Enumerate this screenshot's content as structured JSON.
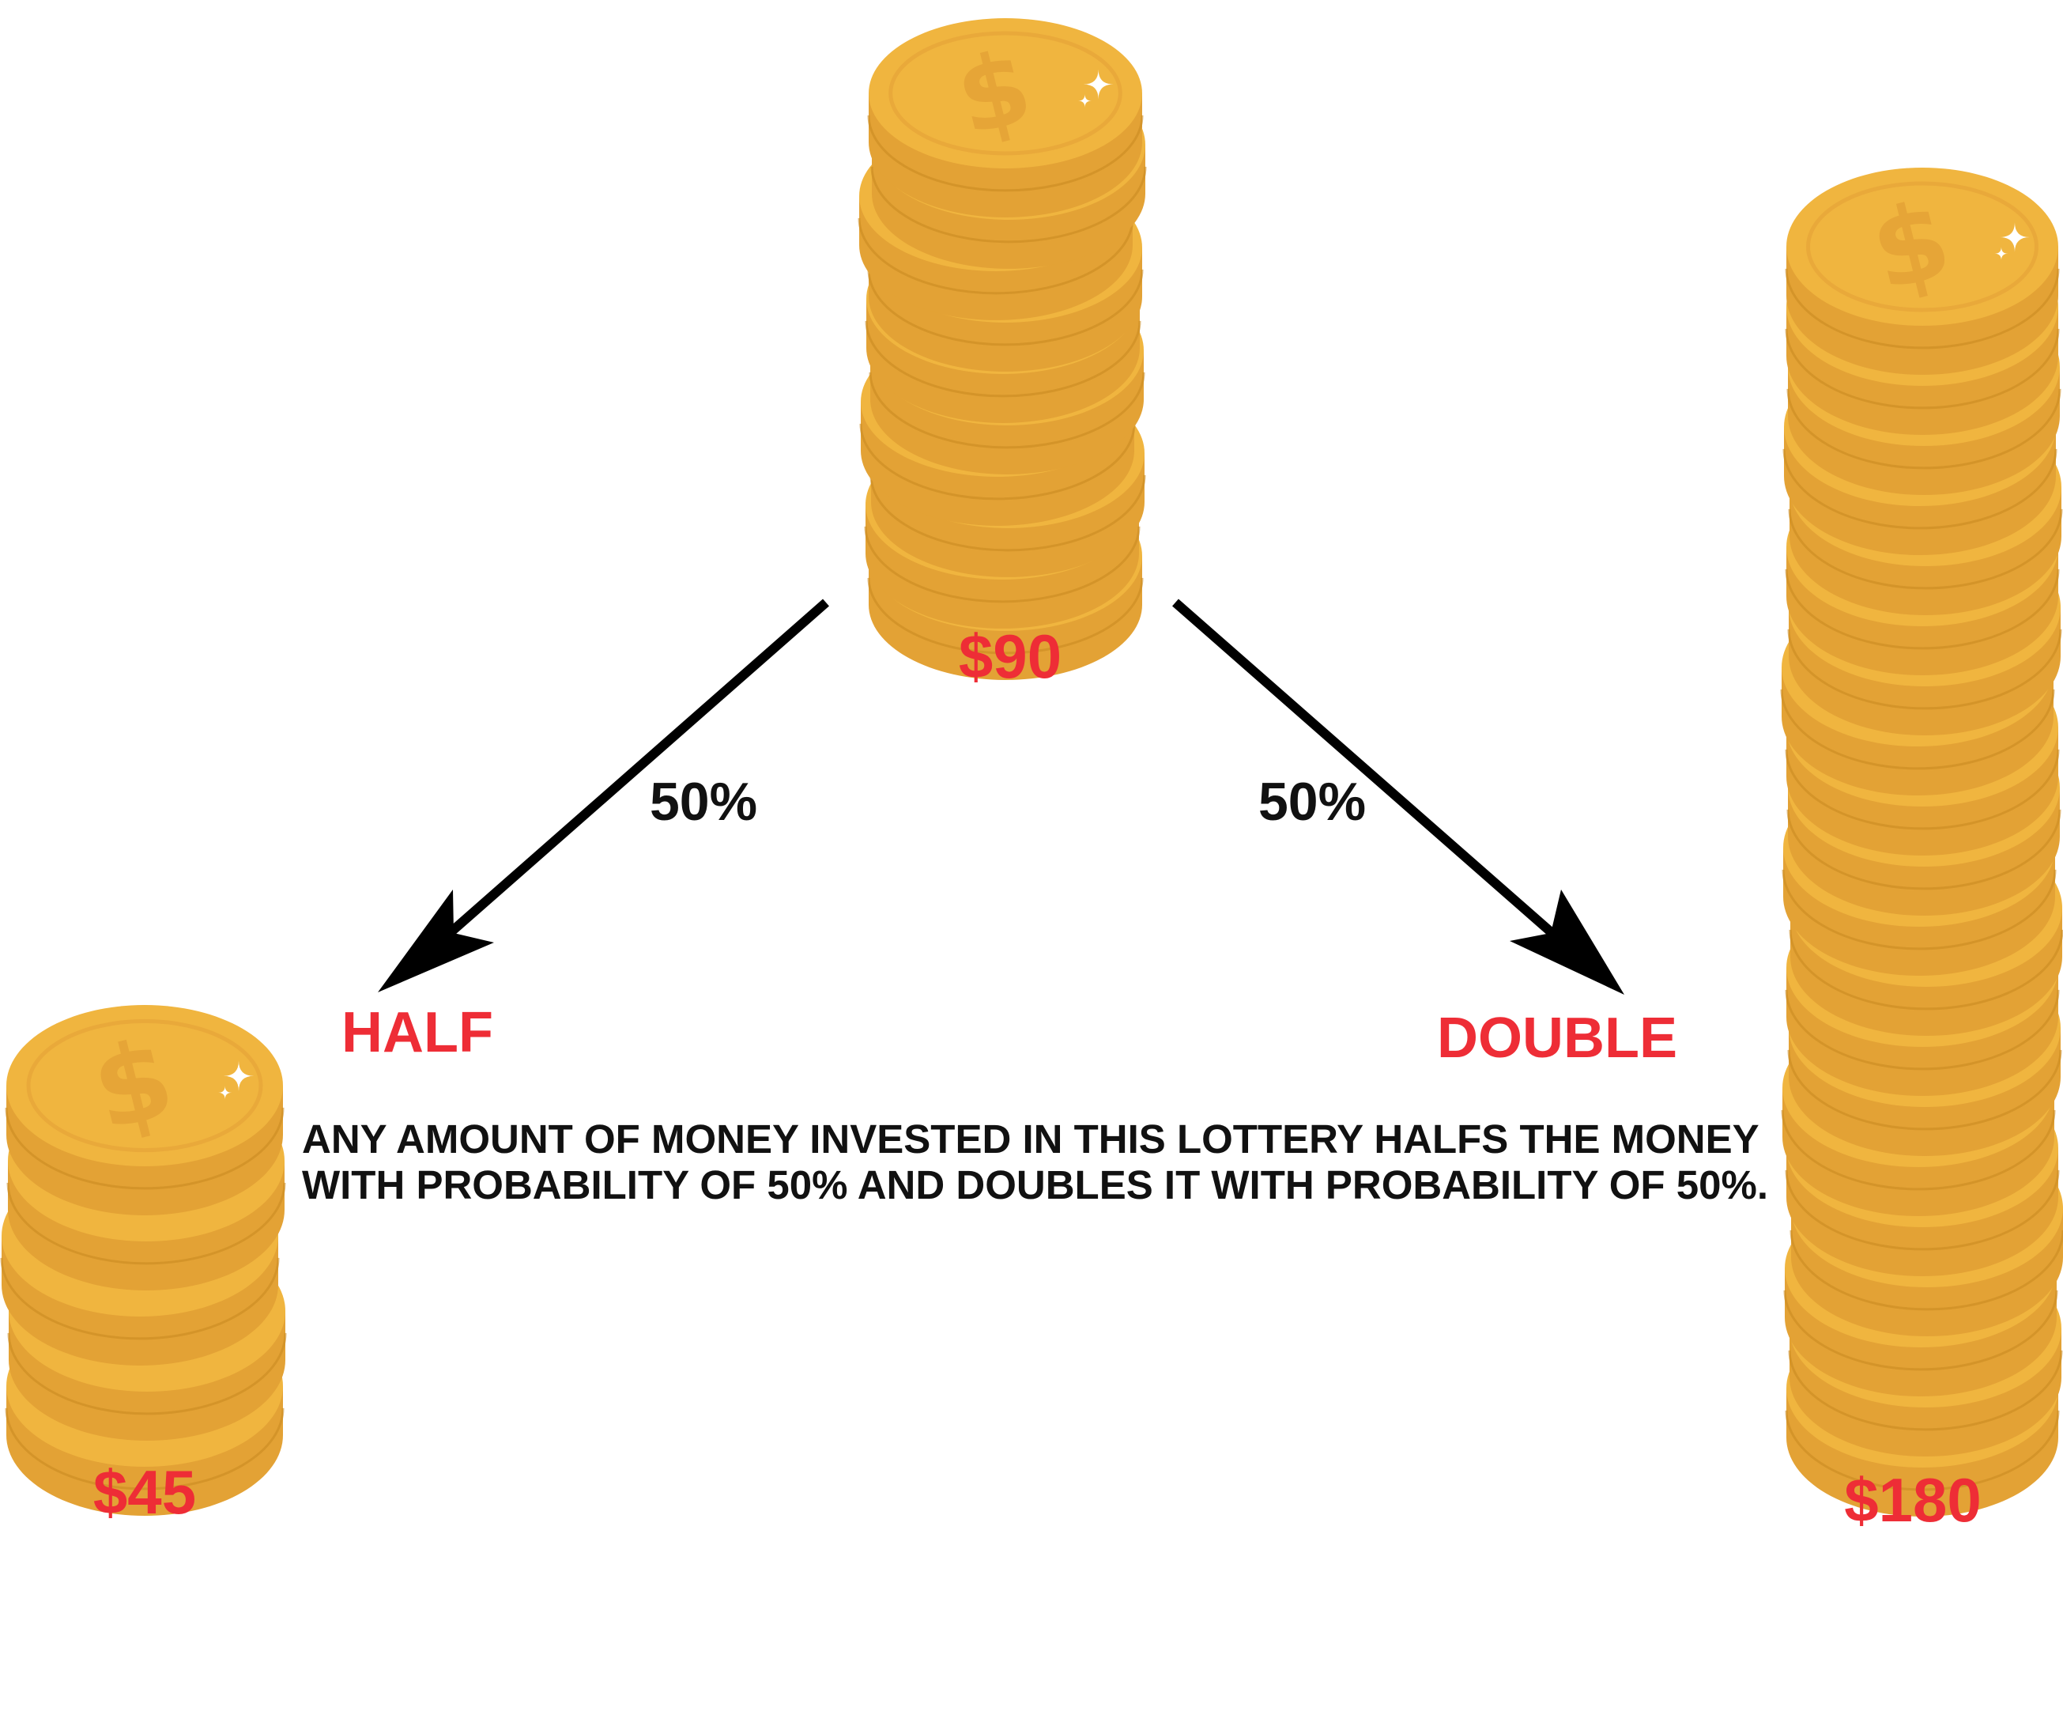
{
  "colors": {
    "coin_face": "#f0b53f",
    "coin_rim": "#e9a93a",
    "coin_edge": "#e3a235",
    "coin_shadow": "#c98a22",
    "coin_symbol": "#e6a537",
    "label_red": "#ee2d36",
    "arrow": "#000000"
  },
  "start": {
    "amount": "$90",
    "coin_count": 10
  },
  "left_branch": {
    "probability": "50%",
    "outcome": "HALF",
    "amount": "$45",
    "coin_count": 5
  },
  "right_branch": {
    "probability": "50%",
    "outcome": "DOUBLE",
    "amount": "$180",
    "coin_count": 20
  },
  "description": {
    "line1": "ANY AMOUNT OF MONEY INVESTED IN THIS LOTTERY HALFS THE MONEY",
    "line2": "WITH PROBABILITY OF 50% AND DOUBLES IT WITH PROBABILITY OF 50%."
  },
  "icons": [
    "dollar-coin-icon",
    "sparkle-icon",
    "arrow-down-left-icon",
    "arrow-down-right-icon"
  ]
}
